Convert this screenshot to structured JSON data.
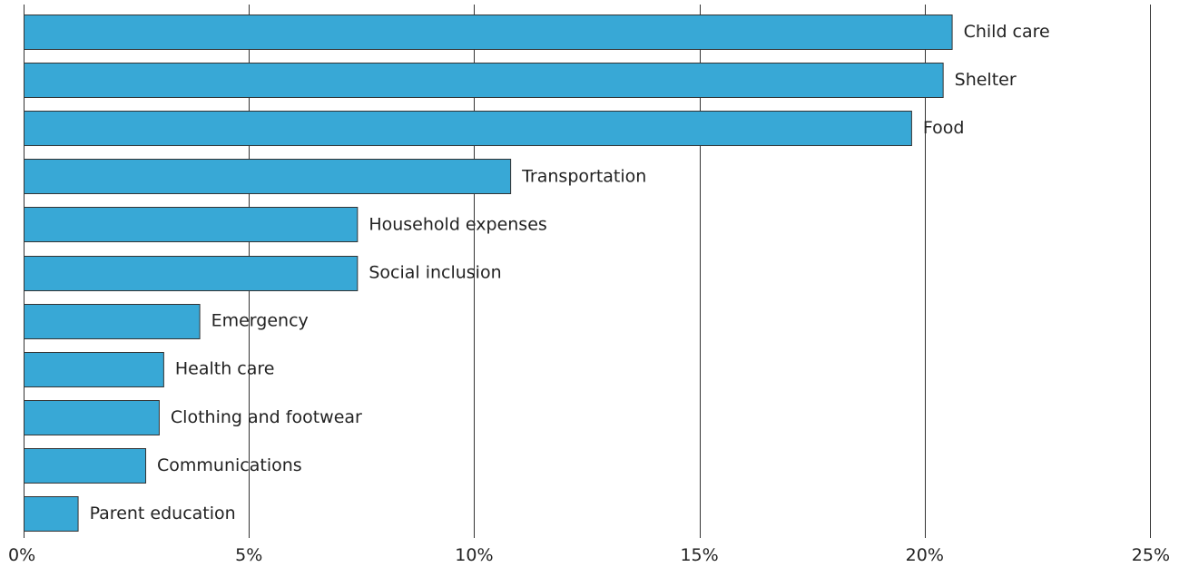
{
  "chart_data": {
    "type": "bar",
    "orientation": "horizontal",
    "categories": [
      "Child care",
      "Shelter",
      "Food",
      "Transportation",
      "Household expenses",
      "Social inclusion",
      "Emergency",
      "Health care",
      "Clothing and footwear",
      "Communications",
      "Parent education"
    ],
    "values": [
      20.6,
      20.4,
      19.7,
      10.8,
      7.4,
      7.4,
      3.9,
      3.1,
      3.0,
      2.7,
      1.2
    ],
    "xlim": [
      0,
      25
    ],
    "xticks": [
      0,
      5,
      10,
      15,
      20,
      25
    ],
    "xtick_labels": [
      "0%",
      "5%",
      "10%",
      "15%",
      "20%",
      "25%"
    ],
    "grid": "vertical",
    "colors": {
      "bar": "#38a8d6",
      "bar_outline": "#333333",
      "grid": "#333333"
    }
  }
}
